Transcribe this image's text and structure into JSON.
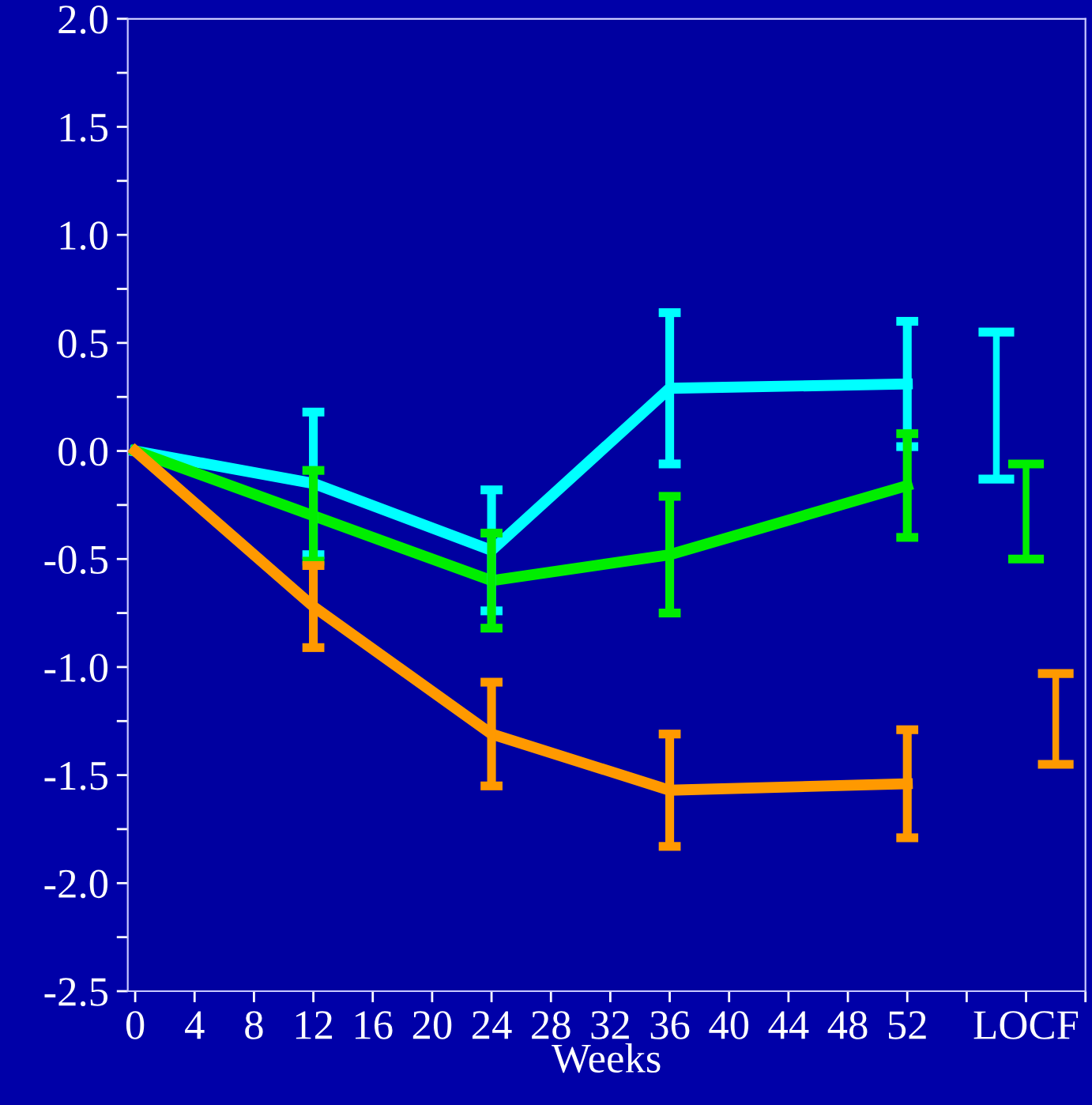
{
  "chart_data": {
    "type": "line",
    "xlabel": "Weeks",
    "xlim": [
      -0.5,
      64
    ],
    "xticks": [
      0,
      4,
      8,
      12,
      16,
      20,
      24,
      28,
      32,
      36,
      40,
      44,
      48,
      52,
      {
        "value": 56,
        "label": null
      },
      {
        "value": 60,
        "label": "LOCF"
      },
      {
        "value": 64,
        "label": null
      }
    ],
    "ylim": [
      -2.5,
      2.0
    ],
    "yticks": [
      {
        "value": -2.5,
        "label": "-2.5"
      },
      {
        "value": -2.25,
        "label": null
      },
      {
        "value": -2.0,
        "label": "-2.0"
      },
      {
        "value": -1.75,
        "label": null
      },
      {
        "value": -1.5,
        "label": "-1.5"
      },
      {
        "value": -1.25,
        "label": null
      },
      {
        "value": -1.0,
        "label": "-1.0"
      },
      {
        "value": -0.75,
        "label": null
      },
      {
        "value": -0.5,
        "label": "-0.5"
      },
      {
        "value": -0.25,
        "label": null
      },
      {
        "value": 0.0,
        "label": "0.0"
      },
      {
        "value": 0.25,
        "label": null
      },
      {
        "value": 0.5,
        "label": "0.5"
      },
      {
        "value": 0.75,
        "label": null
      },
      {
        "value": 1.0,
        "label": "1.0"
      },
      {
        "value": 1.25,
        "label": null
      },
      {
        "value": 1.5,
        "label": "1.5"
      },
      {
        "value": 1.75,
        "label": null
      },
      {
        "value": 2.0,
        "label": "2.0"
      }
    ],
    "grid": false,
    "marker": "none",
    "line_style": "solid",
    "series": [
      {
        "color": "#00ffff",
        "x": [
          0,
          12,
          24,
          36,
          52
        ],
        "values": [
          0,
          -0.15,
          -0.46,
          0.29,
          0.31
        ],
        "errors": [
          null,
          0.33,
          0.28,
          0.35,
          0.29
        ]
      },
      {
        "color": "#00ee00",
        "x": [
          0,
          12,
          24,
          36,
          52
        ],
        "values": [
          0,
          -0.3,
          -0.6,
          -0.48,
          -0.16
        ],
        "errors": [
          null,
          0.21,
          0.22,
          0.27,
          0.24
        ]
      },
      {
        "color": "#ff9900",
        "x": [
          0,
          12,
          24,
          36,
          52
        ],
        "values": [
          0,
          -0.72,
          -1.31,
          -1.57,
          -1.54
        ],
        "errors": [
          null,
          0.19,
          0.24,
          0.26,
          0.25
        ]
      },
      {
        "type": "bar",
        "color": "#00ffff",
        "x": [
          58
        ],
        "base": [
          -0.13
        ],
        "values": [
          0.68
        ]
      },
      {
        "type": "bar",
        "color": "#00ee00",
        "x": [
          60
        ],
        "base": [
          -0.5
        ],
        "values": [
          0.44
        ]
      },
      {
        "type": "bar",
        "color": "#ff9900",
        "x": [
          62
        ],
        "base": [
          -1.45
        ],
        "values": [
          0.42
        ]
      }
    ]
  }
}
